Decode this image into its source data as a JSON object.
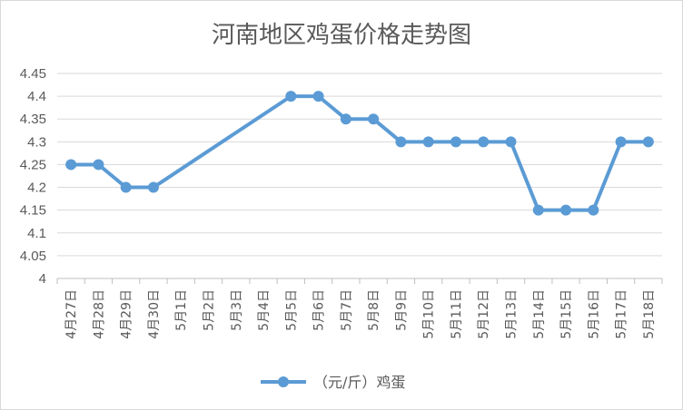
{
  "chart_data": {
    "type": "line",
    "title": "河南地区鸡蛋价格走势图",
    "categories": [
      "4月27日",
      "4月28日",
      "4月29日",
      "4月30日",
      "5月1日",
      "5月2日",
      "5月3日",
      "5月4日",
      "5月5日",
      "5月6日",
      "5月7日",
      "5月8日",
      "5月9日",
      "5月10日",
      "5月11日",
      "5月12日",
      "5月13日",
      "5月14日",
      "5月15日",
      "5月16日",
      "5月17日",
      "5月18日"
    ],
    "series": [
      {
        "name": "（元/斤）鸡蛋",
        "color": "#5b9bd5",
        "values": [
          4.25,
          4.25,
          4.2,
          4.2,
          null,
          null,
          null,
          null,
          4.4,
          4.4,
          4.35,
          4.35,
          4.3,
          4.3,
          4.3,
          4.3,
          4.3,
          4.15,
          4.15,
          4.15,
          4.3,
          4.3
        ]
      }
    ],
    "ylim": [
      4,
      4.45
    ],
    "yticks": [
      "4",
      "4.05",
      "4.1",
      "4.15",
      "4.2",
      "4.25",
      "4.3",
      "4.35",
      "4.4",
      "4.45"
    ],
    "xlabel": "",
    "ylabel": "",
    "grid": true,
    "legend_position": "bottom"
  }
}
